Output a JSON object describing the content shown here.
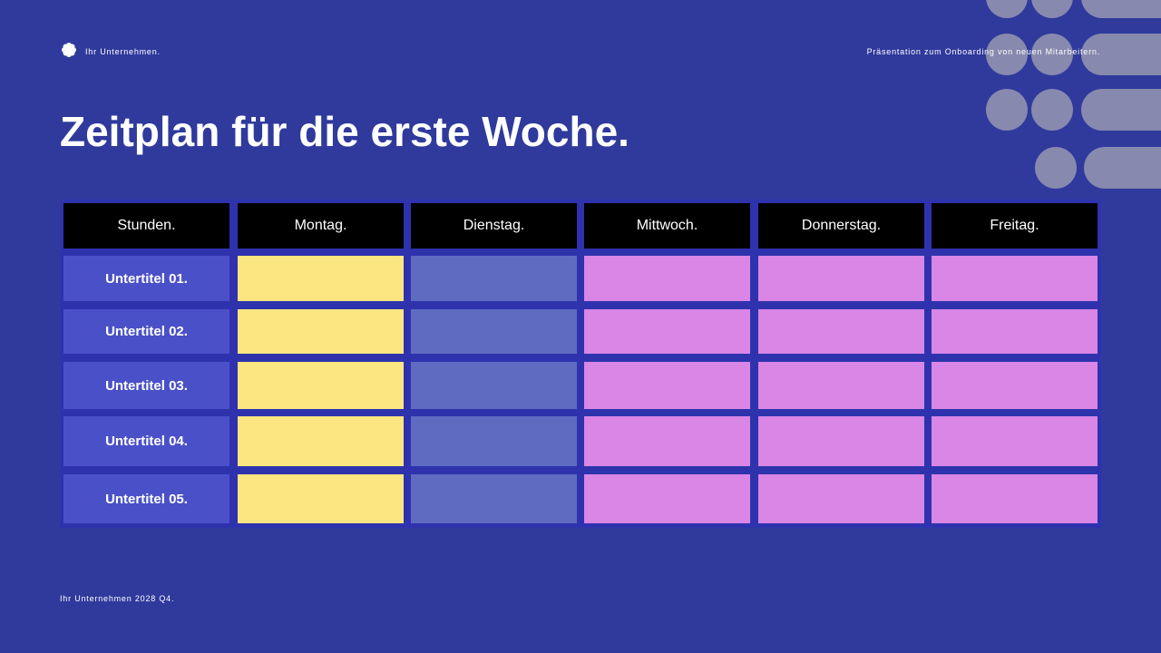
{
  "header": {
    "company": "Ihr Unternehmen.",
    "subtitle": "Präsentation zum Onboarding von neuen Mitarbeitern."
  },
  "title": "Zeitplan für die erste Woche.",
  "table": {
    "header": [
      "Stunden.",
      "Montag.",
      "Dienstag.",
      "Mittwoch.",
      "Donnerstag.",
      "Freitag."
    ],
    "rows": [
      "Untertitel 01.",
      "Untertitel 02.",
      "Untertitel 03.",
      "Untertitel 04.",
      "Untertitel 05."
    ]
  },
  "footer": "Ihr Unternehmen 2028 Q4."
}
